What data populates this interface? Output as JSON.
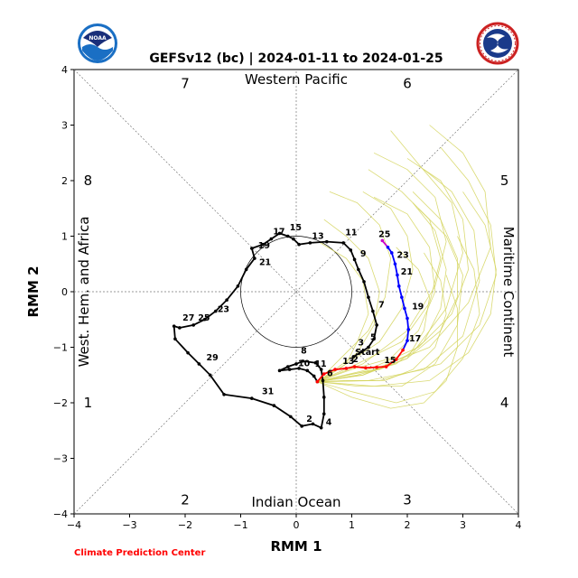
{
  "title": "GEFSv12 (bc) | 2024-01-11 to 2024-01-25",
  "credit": "Climate Prediction Center",
  "colors": {
    "observed": "#000000",
    "forecast_week1": "#ff0000",
    "forecast_week2": "#0000ff",
    "forecast_end": "#cc00cc",
    "ensemble": "#d4d45a",
    "credit": "#ff0000"
  },
  "logos": {
    "left": "noaa-logo",
    "right": "national-weather-service-logo"
  },
  "chart_data": {
    "type": "line",
    "xlabel": "RMM 1",
    "ylabel": "RMM 2",
    "xlim": [
      -4,
      4
    ],
    "ylim": [
      -4,
      4
    ],
    "xticks": [
      "-4",
      "-3",
      "-2",
      "-1",
      "0",
      "1",
      "2",
      "3",
      "4"
    ],
    "yticks": [
      "-4",
      "-3",
      "-2",
      "-1",
      "0",
      "1",
      "2",
      "3",
      "4"
    ],
    "grid": "dotted diagonals and axes",
    "unit_circle_radius": 1,
    "regions": {
      "top": "Western Pacific",
      "bottom": "Indian Ocean",
      "left": "West. Hem. and Africa",
      "right": "Maritime Continent"
    },
    "phases": [
      {
        "label": "1",
        "x": -3.75,
        "y": -2.0
      },
      {
        "label": "2",
        "x": -2.0,
        "y": -3.75
      },
      {
        "label": "3",
        "x": 2.0,
        "y": -3.75
      },
      {
        "label": "4",
        "x": 3.75,
        "y": -2.0
      },
      {
        "label": "5",
        "x": 3.75,
        "y": 2.0
      },
      {
        "label": "6",
        "x": 2.0,
        "y": 3.75
      },
      {
        "label": "7",
        "x": -2.0,
        "y": 3.75
      },
      {
        "label": "8",
        "x": -3.75,
        "y": 2.0
      }
    ],
    "observed": [
      [
        1.03,
        -1.17
      ],
      [
        1.18,
        -1.08
      ],
      [
        1.3,
        -1.0
      ],
      [
        1.4,
        -0.85
      ],
      [
        1.45,
        -0.6
      ],
      [
        1.38,
        -0.35
      ],
      [
        1.3,
        -0.1
      ],
      [
        1.22,
        0.18
      ],
      [
        1.12,
        0.4
      ],
      [
        1.05,
        0.58
      ],
      [
        0.98,
        0.75
      ],
      [
        0.85,
        0.88
      ],
      [
        0.55,
        0.9
      ],
      [
        0.25,
        0.88
      ],
      [
        0.05,
        0.85
      ],
      [
        -0.05,
        0.95
      ],
      [
        -0.15,
        1.0
      ],
      [
        -0.3,
        1.05
      ],
      [
        -0.45,
        0.95
      ],
      [
        -0.6,
        0.85
      ],
      [
        -0.8,
        0.78
      ],
      [
        -0.75,
        0.6
      ],
      [
        -0.9,
        0.4
      ],
      [
        -1.05,
        0.1
      ],
      [
        -1.25,
        -0.15
      ],
      [
        -1.45,
        -0.35
      ],
      [
        -1.65,
        -0.5
      ],
      [
        -1.85,
        -0.6
      ],
      [
        -2.1,
        -0.65
      ],
      [
        -2.2,
        -0.62
      ],
      [
        -2.18,
        -0.85
      ],
      [
        -1.95,
        -1.1
      ],
      [
        -1.75,
        -1.3
      ],
      [
        -1.55,
        -1.5
      ],
      [
        -1.3,
        -1.85
      ],
      [
        -0.8,
        -1.92
      ],
      [
        -0.4,
        -2.05
      ],
      [
        -0.1,
        -2.25
      ],
      [
        0.1,
        -2.42
      ],
      [
        0.3,
        -2.38
      ],
      [
        0.45,
        -2.45
      ],
      [
        0.5,
        -2.2
      ],
      [
        0.5,
        -1.9
      ],
      [
        0.48,
        -1.6
      ],
      [
        0.45,
        -1.4
      ],
      [
        0.35,
        -1.28
      ],
      [
        0.12,
        -1.25
      ],
      [
        0.0,
        -1.3
      ],
      [
        -0.15,
        -1.35
      ],
      [
        -0.3,
        -1.42
      ],
      [
        -0.12,
        -1.4
      ],
      [
        0.05,
        -1.38
      ],
      [
        0.2,
        -1.42
      ],
      [
        0.32,
        -1.52
      ],
      [
        0.38,
        -1.62
      ]
    ],
    "observed_labels": [
      {
        "text": "Start",
        "x": 1.03,
        "y": -1.17
      },
      {
        "text": "3",
        "x": 1.08,
        "y": -1.0
      },
      {
        "text": "5",
        "x": 1.3,
        "y": -0.9
      },
      {
        "text": "7",
        "x": 1.45,
        "y": -0.32
      },
      {
        "text": "9",
        "x": 1.12,
        "y": 0.6
      },
      {
        "text": "11",
        "x": 0.85,
        "y": 0.98
      },
      {
        "text": "13",
        "x": 0.25,
        "y": 0.92
      },
      {
        "text": "15",
        "x": -0.15,
        "y": 1.07
      },
      {
        "text": "17",
        "x": -0.45,
        "y": 1.0
      },
      {
        "text": "19",
        "x": -0.72,
        "y": 0.75
      },
      {
        "text": "21",
        "x": -0.7,
        "y": 0.45
      },
      {
        "text": "23",
        "x": -1.45,
        "y": -0.4
      },
      {
        "text": "25",
        "x": -1.8,
        "y": -0.55
      },
      {
        "text": "27",
        "x": -2.08,
        "y": -0.55
      },
      {
        "text": "29",
        "x": -1.65,
        "y": -1.27
      },
      {
        "text": "31",
        "x": -0.65,
        "y": -1.88
      },
      {
        "text": "2",
        "x": 0.15,
        "y": -2.37
      },
      {
        "text": "4",
        "x": 0.5,
        "y": -2.43
      },
      {
        "text": "6",
        "x": 0.52,
        "y": -1.55
      },
      {
        "text": "8",
        "x": 0.05,
        "y": -1.15
      },
      {
        "text": "10",
        "x": 0.0,
        "y": -1.37
      },
      {
        "text": "11",
        "x": 0.3,
        "y": -1.38
      }
    ],
    "forecast": [
      [
        0.38,
        -1.62
      ],
      [
        0.5,
        -1.48
      ],
      [
        0.7,
        -1.4
      ],
      [
        0.9,
        -1.38
      ],
      [
        1.05,
        -1.35
      ],
      [
        1.25,
        -1.37
      ],
      [
        1.45,
        -1.36
      ],
      [
        1.62,
        -1.35
      ],
      [
        1.8,
        -1.22
      ],
      [
        1.92,
        -1.05
      ],
      [
        2.0,
        -0.88
      ],
      [
        2.02,
        -0.68
      ],
      [
        2.0,
        -0.48
      ],
      [
        1.95,
        -0.3
      ],
      [
        1.9,
        -0.1
      ],
      [
        1.85,
        0.1
      ],
      [
        1.82,
        0.3
      ],
      [
        1.78,
        0.5
      ],
      [
        1.72,
        0.7
      ],
      [
        1.65,
        0.8
      ],
      [
        1.55,
        0.92
      ]
    ],
    "forecast_week1_end_index": 9,
    "forecast_week2_end_index": 19,
    "forecast_labels": [
      {
        "text": "13",
        "x": 0.8,
        "y": -1.33
      },
      {
        "text": "2",
        "x": 0.98,
        "y": -1.3
      },
      {
        "text": "15",
        "x": 1.55,
        "y": -1.32
      },
      {
        "text": "17",
        "x": 2.0,
        "y": -0.93
      },
      {
        "text": "19",
        "x": 2.05,
        "y": -0.35
      },
      {
        "text": "21",
        "x": 1.85,
        "y": 0.28
      },
      {
        "text": "23",
        "x": 1.78,
        "y": 0.58
      },
      {
        "text": "25",
        "x": 1.45,
        "y": 0.95
      }
    ],
    "ensemble_members": [
      [
        [
          0.38,
          -1.62
        ],
        [
          1.1,
          -1.3
        ],
        [
          1.9,
          -0.9
        ],
        [
          2.4,
          -0.2
        ],
        [
          2.6,
          0.6
        ],
        [
          2.4,
          1.3
        ],
        [
          1.9,
          1.8
        ],
        [
          1.3,
          2.2
        ]
      ],
      [
        [
          0.38,
          -1.62
        ],
        [
          1.2,
          -1.5
        ],
        [
          2.1,
          -1.1
        ],
        [
          2.7,
          -0.3
        ],
        [
          3.0,
          0.7
        ],
        [
          2.8,
          1.6
        ],
        [
          2.2,
          2.3
        ],
        [
          1.7,
          2.9
        ]
      ],
      [
        [
          0.38,
          -1.62
        ],
        [
          1.0,
          -1.4
        ],
        [
          1.7,
          -1.2
        ],
        [
          2.2,
          -0.7
        ],
        [
          2.5,
          0.0
        ],
        [
          2.4,
          0.8
        ],
        [
          2.0,
          1.4
        ],
        [
          1.4,
          1.7
        ]
      ],
      [
        [
          0.38,
          -1.62
        ],
        [
          1.3,
          -1.6
        ],
        [
          2.3,
          -1.4
        ],
        [
          3.0,
          -0.8
        ],
        [
          3.3,
          0.2
        ],
        [
          3.2,
          1.1
        ],
        [
          2.8,
          1.8
        ],
        [
          2.3,
          2.2
        ]
      ],
      [
        [
          0.38,
          -1.62
        ],
        [
          0.9,
          -1.5
        ],
        [
          1.5,
          -1.4
        ],
        [
          2.0,
          -1.2
        ],
        [
          2.3,
          -0.7
        ],
        [
          2.4,
          -0.1
        ],
        [
          2.2,
          0.4
        ],
        [
          1.8,
          0.8
        ]
      ],
      [
        [
          0.38,
          -1.62
        ],
        [
          1.1,
          -1.7
        ],
        [
          1.9,
          -1.7
        ],
        [
          2.5,
          -1.3
        ],
        [
          2.9,
          -0.6
        ],
        [
          3.0,
          0.3
        ],
        [
          2.7,
          1.0
        ],
        [
          2.2,
          1.5
        ]
      ],
      [
        [
          0.38,
          -1.62
        ],
        [
          0.7,
          -1.4
        ],
        [
          1.1,
          -1.1
        ],
        [
          1.4,
          -0.6
        ],
        [
          1.5,
          0.0
        ],
        [
          1.3,
          0.6
        ],
        [
          0.9,
          1.0
        ],
        [
          0.5,
          1.3
        ]
      ],
      [
        [
          0.38,
          -1.62
        ],
        [
          1.4,
          -1.4
        ],
        [
          2.4,
          -1.0
        ],
        [
          3.1,
          -0.2
        ],
        [
          3.5,
          0.8
        ],
        [
          3.4,
          1.8
        ],
        [
          3.0,
          2.5
        ],
        [
          2.4,
          3.0
        ]
      ],
      [
        [
          0.38,
          -1.62
        ],
        [
          1.0,
          -1.8
        ],
        [
          1.8,
          -2.0
        ],
        [
          2.5,
          -1.8
        ],
        [
          3.0,
          -1.2
        ],
        [
          3.3,
          -0.4
        ],
        [
          3.2,
          0.4
        ],
        [
          2.9,
          1.0
        ]
      ],
      [
        [
          0.38,
          -1.62
        ],
        [
          0.8,
          -1.2
        ],
        [
          1.3,
          -0.7
        ],
        [
          1.6,
          -0.1
        ],
        [
          1.7,
          0.6
        ],
        [
          1.5,
          1.2
        ],
        [
          1.1,
          1.6
        ],
        [
          0.6,
          1.8
        ]
      ],
      [
        [
          0.38,
          -1.62
        ],
        [
          1.2,
          -1.3
        ],
        [
          2.0,
          -0.7
        ],
        [
          2.5,
          0.1
        ],
        [
          2.7,
          0.9
        ],
        [
          2.5,
          1.7
        ],
        [
          2.0,
          2.2
        ],
        [
          1.4,
          2.5
        ]
      ],
      [
        [
          0.38,
          -1.62
        ],
        [
          1.5,
          -1.6
        ],
        [
          2.6,
          -1.3
        ],
        [
          3.3,
          -0.6
        ],
        [
          3.6,
          0.3
        ],
        [
          3.5,
          1.2
        ],
        [
          3.1,
          2.0
        ],
        [
          2.6,
          2.6
        ]
      ],
      [
        [
          0.38,
          -1.62
        ],
        [
          0.9,
          -1.6
        ],
        [
          1.6,
          -1.6
        ],
        [
          2.1,
          -1.4
        ],
        [
          2.5,
          -1.0
        ],
        [
          2.7,
          -0.4
        ],
        [
          2.6,
          0.2
        ],
        [
          2.3,
          0.7
        ]
      ],
      [
        [
          0.38,
          -1.62
        ],
        [
          1.1,
          -1.5
        ],
        [
          1.8,
          -1.3
        ],
        [
          2.3,
          -0.9
        ],
        [
          2.6,
          -0.3
        ],
        [
          2.7,
          0.4
        ],
        [
          2.5,
          1.1
        ],
        [
          2.1,
          1.6
        ]
      ],
      [
        [
          0.38,
          -1.62
        ],
        [
          0.6,
          -1.5
        ],
        [
          0.9,
          -1.3
        ],
        [
          1.1,
          -0.9
        ],
        [
          1.3,
          -0.4
        ],
        [
          1.2,
          0.2
        ],
        [
          0.9,
          0.6
        ],
        [
          0.4,
          0.9
        ]
      ],
      [
        [
          0.38,
          -1.62
        ],
        [
          1.3,
          -1.4
        ],
        [
          2.2,
          -1.0
        ],
        [
          2.8,
          -0.4
        ],
        [
          3.1,
          0.4
        ],
        [
          3.0,
          1.3
        ],
        [
          2.6,
          2.0
        ],
        [
          2.0,
          2.4
        ]
      ],
      [
        [
          0.38,
          -1.62
        ],
        [
          1.0,
          -1.9
        ],
        [
          1.7,
          -2.1
        ],
        [
          2.3,
          -2.0
        ],
        [
          2.7,
          -1.6
        ],
        [
          2.9,
          -1.0
        ],
        [
          2.9,
          -0.3
        ],
        [
          2.7,
          0.3
        ]
      ],
      [
        [
          0.38,
          -1.62
        ],
        [
          1.2,
          -1.5
        ],
        [
          2.0,
          -1.2
        ],
        [
          2.6,
          -0.7
        ],
        [
          2.9,
          -0.1
        ],
        [
          2.9,
          0.6
        ],
        [
          2.6,
          1.3
        ],
        [
          2.1,
          1.8
        ]
      ],
      [
        [
          0.38,
          -1.62
        ],
        [
          0.9,
          -1.3
        ],
        [
          1.5,
          -0.9
        ],
        [
          1.9,
          -0.3
        ],
        [
          2.1,
          0.4
        ],
        [
          2.0,
          1.0
        ],
        [
          1.7,
          1.5
        ],
        [
          1.2,
          1.8
        ]
      ],
      [
        [
          0.38,
          -1.62
        ],
        [
          1.4,
          -1.7
        ],
        [
          2.4,
          -1.6
        ],
        [
          3.1,
          -1.1
        ],
        [
          3.5,
          -0.4
        ],
        [
          3.6,
          0.4
        ],
        [
          3.4,
          1.2
        ],
        [
          3.0,
          1.8
        ]
      ]
    ]
  }
}
